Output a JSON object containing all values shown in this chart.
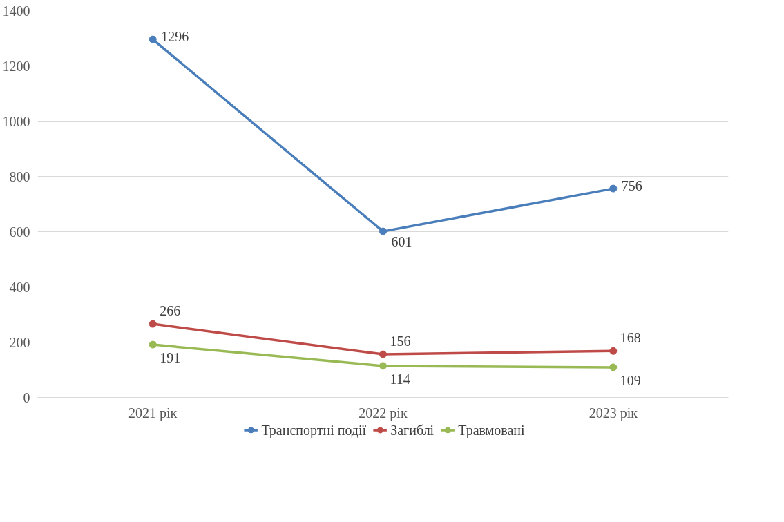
{
  "chart_data": {
    "type": "line",
    "categories": [
      "2021 рік",
      "2022 рік",
      "2023 рік"
    ],
    "series": [
      {
        "name": "Транспортні події",
        "color": "#4a7ebb",
        "values": [
          1296,
          601,
          756
        ]
      },
      {
        "name": "Загиблі",
        "color": "#be4b48",
        "values": [
          266,
          156,
          168
        ]
      },
      {
        "name": "Травмовані",
        "color": "#98b954",
        "values": [
          191,
          114,
          109
        ]
      }
    ],
    "ylim": [
      0,
      1400
    ],
    "yticks": [
      0,
      200,
      400,
      600,
      800,
      1000,
      1200,
      1400
    ],
    "grid": "y",
    "legend": "bottom",
    "marker": "circle",
    "line_style": "solid",
    "data_labels": true
  }
}
